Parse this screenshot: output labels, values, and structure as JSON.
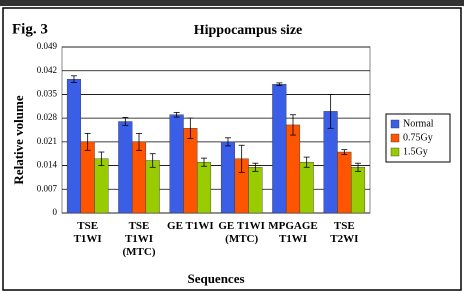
{
  "chart_data": {
    "type": "bar",
    "figure_label": "Fig. 3",
    "title": "Hippocampus size",
    "x_label": "Sequences",
    "y_label": "Relative volume",
    "categories": [
      "TSE\nT1WI",
      "TSE\nT1WI\n(MTC)",
      "GE T1WI",
      "GE T1WI\n(MTC)",
      "MPGAGE\nT1WI",
      "TSE\nT2WI"
    ],
    "series": [
      {
        "name": "Normal",
        "color": "#3b5ee6",
        "values": [
          0.0395,
          0.027,
          0.029,
          0.021,
          0.038,
          0.03
        ],
        "errors": [
          0.001,
          0.0012,
          0.0007,
          0.0012,
          0.0004,
          0.005
        ]
      },
      {
        "name": "0.75Gy",
        "color": "#ff5500",
        "values": [
          0.021,
          0.021,
          0.025,
          0.016,
          0.026,
          0.018
        ],
        "errors": [
          0.0025,
          0.0025,
          0.003,
          0.004,
          0.003,
          0.0007
        ]
      },
      {
        "name": "1.5Gy",
        "color": "#99cc00",
        "values": [
          0.016,
          0.0155,
          0.015,
          0.0135,
          0.015,
          0.0135
        ],
        "errors": [
          0.002,
          0.002,
          0.0012,
          0.0012,
          0.0015,
          0.0012
        ]
      }
    ],
    "ylim": [
      0,
      0.049
    ],
    "yticks": [
      0,
      0.007,
      0.014,
      0.021,
      0.028,
      0.035,
      0.042,
      0.049
    ],
    "grid": true,
    "legend": "right"
  }
}
